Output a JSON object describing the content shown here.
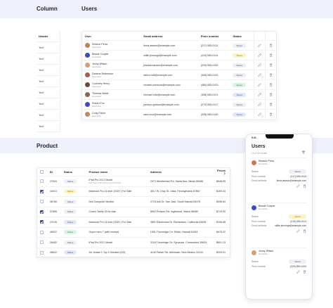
{
  "sections": {
    "column": "Column",
    "users": "Users",
    "product": "Product"
  },
  "column_demo": {
    "header": "Header",
    "cells": [
      "Text",
      "Text",
      "Text",
      "Text",
      "Text",
      "Text",
      "Text",
      "Text"
    ]
  },
  "users_table": {
    "columns": [
      "User",
      "Email address",
      "Phon number",
      "Status"
    ],
    "rows": [
      {
        "name": "Eleanor Pena",
        "desc": "Description",
        "email": "ilena.lawson@example.com",
        "phone": "(217) 555-0113",
        "status": "Status",
        "tone": "grey",
        "avatar": "#c7795d"
      },
      {
        "name": "Bessie Cooper",
        "desc": "Description",
        "email": "willie.jennings@example.com",
        "phone": "(219) 555-0114",
        "status": "Status",
        "tone": "yellow",
        "avatar": "#3b48c8"
      },
      {
        "name": "Jenny Wilson",
        "desc": "Description",
        "email": "jessica.hanson@example.com",
        "phone": "(229) 555-0109",
        "status": "Status",
        "tone": "grey",
        "avatar": "#d3a07c"
      },
      {
        "name": "Darlene Robertson",
        "desc": "Description",
        "email": "debra.holt@example.com",
        "phone": "(406) 555-0120",
        "status": "Status",
        "tone": "grey",
        "avatar": "#a5624b"
      },
      {
        "name": "Courtney Henry",
        "desc": "Description",
        "email": "nevaeh.simmons@example.com",
        "phone": "(480) 555-0103",
        "status": "Status",
        "tone": "green",
        "avatar": "#6d4a3a"
      },
      {
        "name": "Theresa Webb",
        "desc": "Description",
        "email": "michael.mitc@example.com",
        "phone": "(308) 555-0121",
        "status": "Status",
        "tone": "blue",
        "avatar": "#8d6250"
      },
      {
        "name": "Robert Fox",
        "desc": "Description",
        "email": "jackson.graham@example.com",
        "phone": "(270) 555-0117",
        "status": "Status",
        "tone": "grey",
        "avatar": "#3b48c8"
      },
      {
        "name": "Cody Fisher",
        "desc": "Description",
        "email": "sara.cruz@example.com",
        "phone": "(205) 555-0100",
        "status": "Status",
        "tone": "blue",
        "avatar": "#b98a6c"
      }
    ]
  },
  "product_table": {
    "columns": [
      "ID",
      "Status",
      "Product name",
      "Address",
      "Prices"
    ],
    "sort_icon": "sort-arrows-icon",
    "rows": [
      {
        "checked": false,
        "id": "27615",
        "status": "Status",
        "tone": "grey",
        "product": "iPad Pro 2017 Model",
        "desc": "Dell Vostro 3450 (Arctic Fox) Combined",
        "address": "2972 Westheimer Rd. Santa Ana, Illinois 85486",
        "price": "$948.55"
      },
      {
        "checked": true,
        "id": "44413",
        "status": "Status",
        "tone": "yellow",
        "product": "Macbook Pro 16 inch (2020 ) For Sale",
        "desc": "",
        "address": "3517 W. Gray St. Utica, Pennsylvania 57867",
        "price": "$169.43"
      },
      {
        "checked": false,
        "id": "38766",
        "status": "Status",
        "tone": "grey",
        "product": "Dell Computer Monitor",
        "desc": "",
        "address": "2715 Ash Dr. San Jose, South Dakota 83475",
        "price": "$396.84"
      },
      {
        "checked": true,
        "id": "37685",
        "status": "Status",
        "tone": "grey",
        "product": "Coach Tabby 26 for sale",
        "desc": "",
        "address": "8502 Preston Rd. Inglewood, Maine 98380",
        "price": "$719.00"
      },
      {
        "checked": true,
        "id": "22145",
        "status": "Status",
        "tone": "blue",
        "product": "Macbook Pro 16 inch (2020 ) For Sale",
        "desc": "",
        "address": "3891 Ranchview Dr. Richardson, California 62639",
        "price": "$106.58"
      },
      {
        "checked": false,
        "id": "48022",
        "status": "Status",
        "tone": "green",
        "product": "Gopro hero 7 (with receipt)",
        "desc": "",
        "address": "1901 Thornridge Cir. Shiloh, Hawaii 81063",
        "price": "$475.22"
      },
      {
        "checked": false,
        "id": "26452",
        "status": "Status",
        "tone": "grey",
        "product": "iPad Pro 2017 Model",
        "desc": "",
        "address": "2118 Thornridge Cir. Syracuse, Connecticut 35624",
        "price": "$601.13"
      },
      {
        "checked": false,
        "id": "48622",
        "status": "Status",
        "tone": "blue",
        "product": "Air Jordan 1 Top 3 Sneaker (DS)",
        "desc": "",
        "address": "4140 Parker Rd. Allentown, New Mexico 31134",
        "price": "$293.01"
      }
    ]
  },
  "mobile": {
    "time": "9:41",
    "title": "Users",
    "results": "12 of 34 results",
    "labels": {
      "status": "Status",
      "phone": "Phon number",
      "email": "Email address"
    },
    "users": [
      {
        "name": "Eleanor Pena",
        "desc": "Description",
        "status": "Status",
        "tone": "grey",
        "phone": "(217) 555-0113",
        "email": "ilena.lawson@example.com",
        "avatar": "#c7795d"
      },
      {
        "name": "Bessie Cooper",
        "desc": "Description",
        "status": "Status",
        "tone": "yellow",
        "phone": "(219) 555-0114",
        "email": "willie.jennings@example.com",
        "avatar": "#3b48c8"
      },
      {
        "name": "Jenny Wilson",
        "desc": "Description",
        "status": "Status",
        "tone": "grey",
        "phone": "(229) 555-0109",
        "email": "",
        "avatar": "#d3a07c"
      }
    ]
  }
}
